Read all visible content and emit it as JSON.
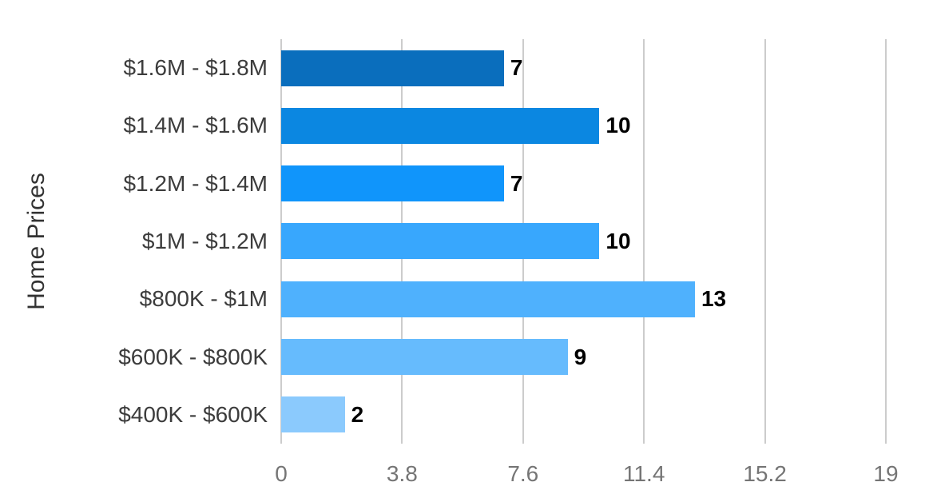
{
  "chart_data": {
    "type": "bar",
    "orientation": "horizontal",
    "title": "",
    "xlabel": "",
    "ylabel": "Home Prices",
    "categories": [
      "$1.6M - $1.8M",
      "$1.4M - $1.6M",
      "$1.2M - $1.4M",
      "$1M - $1.2M",
      "$800K - $1M",
      "$600K - $800K",
      "$400K - $600K"
    ],
    "values": [
      7,
      10,
      7,
      10,
      13,
      9,
      2
    ],
    "value_labels": [
      "7",
      "10",
      "7",
      "10",
      "13",
      "9",
      "2"
    ],
    "xlim": [
      0,
      19
    ],
    "x_ticks": [
      "0",
      "3.8",
      "7.6",
      "11.4",
      "15.2",
      "19"
    ],
    "x_tick_values": [
      0,
      3.8,
      7.6,
      11.4,
      15.2,
      19
    ],
    "grid": true,
    "legend": "none",
    "colors": {
      "bars": [
        "#0a6ebd",
        "#0b87e1",
        "#1095fb",
        "#38a7fd",
        "#4fb1fd",
        "#66bbfd",
        "#8bcafd"
      ],
      "gridline": "#cccccc",
      "tick_label": "#757575",
      "category_label": "#3c3c3c",
      "value_label": "#000000",
      "axis_title": "#333333",
      "background": "#ffffff"
    }
  }
}
